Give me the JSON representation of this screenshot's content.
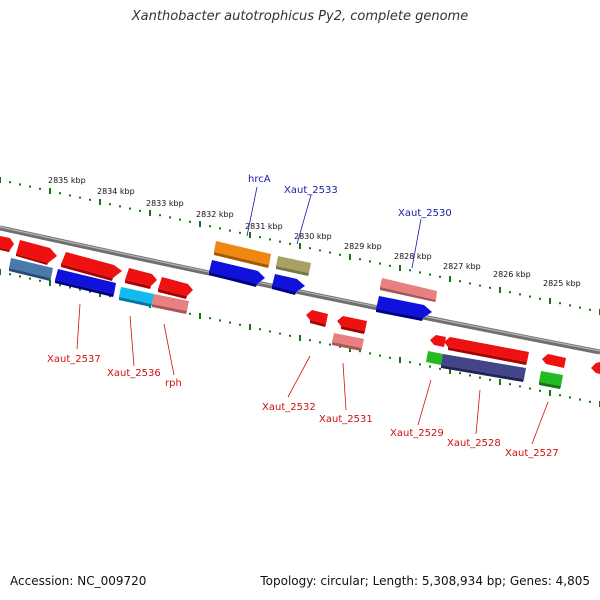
{
  "title": "Xanthobacter autotrophicus Py2, complete genome",
  "footer": {
    "accession": "Accession: NC_009720",
    "stats": "Topology: circular; Length: 5,308,934 bp; Genes: 4,805"
  },
  "scale": {
    "positions_kbp": [
      2835,
      2834,
      2833,
      2832,
      2831,
      2830,
      2829,
      2828,
      2827,
      2826,
      2825
    ],
    "labels": [
      "2835 kbp",
      "2834 kbp",
      "2833 kbp",
      "2832 kbp",
      "2831 kbp",
      "2830 kbp",
      "2829 kbp",
      "2828 kbp",
      "2827 kbp",
      "2826 kbp",
      "2825 kbp"
    ]
  },
  "colors": {
    "red": "#ee1111",
    "pink": "#e88080",
    "blue": "#1111dd",
    "steel": "#4a7aaa",
    "cyan": "#11bbee",
    "orange": "#ee8811",
    "olive": "#aaa066",
    "green": "#22bb22",
    "navy": "#444488",
    "axis": "#888888",
    "ticks": "#117711"
  },
  "labels_top": [
    "hrcA",
    "Xaut_2533",
    "Xaut_2530"
  ],
  "labels_bottom": [
    "Xaut_2537",
    "Xaut_2536",
    "rph",
    "Xaut_2532",
    "Xaut_2531",
    "Xaut_2529",
    "Xaut_2528",
    "Xaut_2527"
  ]
}
